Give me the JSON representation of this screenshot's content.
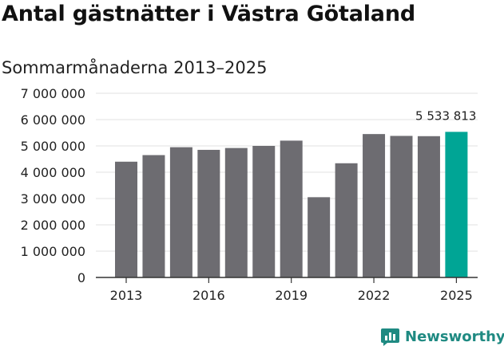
{
  "colors": {
    "bar": "#6d6c71",
    "highlight": "#00a595",
    "grid": "#e1e1e1",
    "axis": "#333333",
    "text": "#222222",
    "brand": "#1f8a82"
  },
  "brand": {
    "name": "Newsworthy",
    "icon": "bar-chart-logo-icon"
  },
  "chart_data": {
    "type": "bar",
    "title": "Antal gästnätter i Västra Götaland",
    "subtitle": "Sommarmånaderna 2013–2025",
    "xlabel": "",
    "ylabel": "",
    "categories": [
      "2013",
      "2014",
      "2015",
      "2016",
      "2017",
      "2018",
      "2019",
      "2020",
      "2021",
      "2022",
      "2023",
      "2024",
      "2025"
    ],
    "values": [
      4400000,
      4650000,
      4950000,
      4850000,
      4920000,
      5000000,
      5200000,
      3050000,
      4340000,
      5450000,
      5380000,
      5370000,
      5533813
    ],
    "highlight_index": 12,
    "data_labels": [
      {
        "index": 12,
        "text": "5 533 813"
      }
    ],
    "ylim": [
      0,
      7000000
    ],
    "y_ticks": [
      0,
      1000000,
      2000000,
      3000000,
      4000000,
      5000000,
      6000000,
      7000000
    ],
    "y_tick_labels": [
      "0",
      "1 000 000",
      "2 000 000",
      "3 000 000",
      "4 000 000",
      "5 000 000",
      "6 000 000",
      "7 000 000"
    ],
    "x_tick_labels": [
      "2013",
      "2016",
      "2019",
      "2022",
      "2025"
    ],
    "grid": true,
    "legend": "none"
  }
}
